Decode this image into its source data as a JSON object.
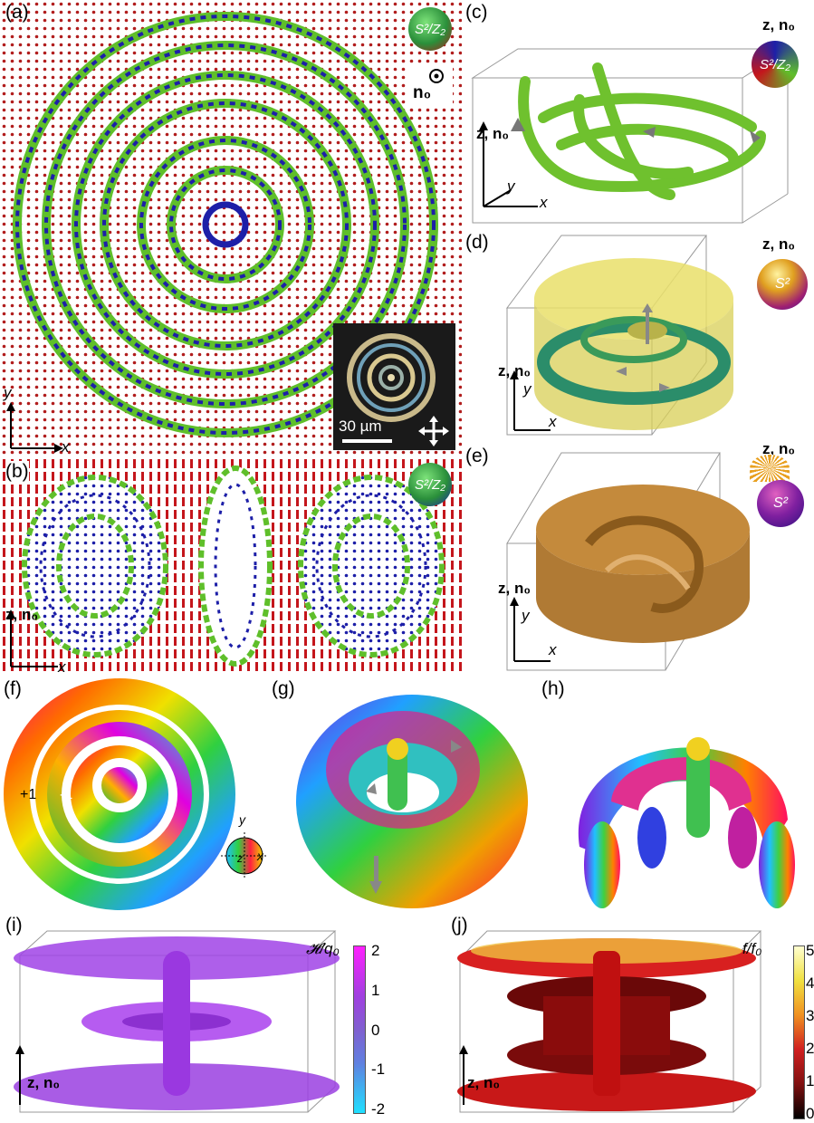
{
  "panels": {
    "a": {
      "label": "(a)",
      "badge": "S²/Z₂",
      "vector_label": "n₀",
      "scale_bar": "30 µm",
      "axis_x": "x",
      "axis_y": "y"
    },
    "b": {
      "label": "(b)",
      "badge": "S²/Z₂",
      "axis_z": "z, n₀",
      "axis_x": "x"
    },
    "c": {
      "label": "(c)",
      "badge": "S²/Z₂",
      "axis_top": "z, n₀",
      "axis_z": "z, n₀",
      "axis_x": "x",
      "axis_y": "y"
    },
    "d": {
      "label": "(d)",
      "badge": "S²",
      "axis_top": "z, n₀",
      "axis_z": "z, n₀",
      "axis_x": "x",
      "axis_y": "y"
    },
    "e": {
      "label": "(e)",
      "badge": "S²",
      "axis_top": "z, n₀",
      "axis_z": "z, n₀",
      "axis_x": "x",
      "axis_y": "y"
    },
    "f": {
      "label": "(f)",
      "plus": "+1",
      "minus": "-1",
      "axis_x": "x",
      "axis_y": "y",
      "axis_z": "z"
    },
    "g": {
      "label": "(g)"
    },
    "h": {
      "label": "(h)"
    },
    "i": {
      "label": "(i)",
      "colorbar_title": "𝓗/q₀",
      "ticks": [
        "2",
        "1",
        "0",
        "-1",
        "-2"
      ],
      "axis_z": "z, n₀"
    },
    "j": {
      "label": "(j)",
      "colorbar_title": "f/f₀",
      "ticks": [
        "5",
        "4",
        "3",
        "2",
        "1",
        "0"
      ],
      "axis_z": "z, n₀"
    }
  },
  "colors": {
    "green": "#5fbf2a",
    "blue": "#1d1fa8",
    "red": "#c4161c",
    "gold": "#c9903f",
    "purple": "#9b3fe0",
    "darkred": "#7a0b0b"
  }
}
